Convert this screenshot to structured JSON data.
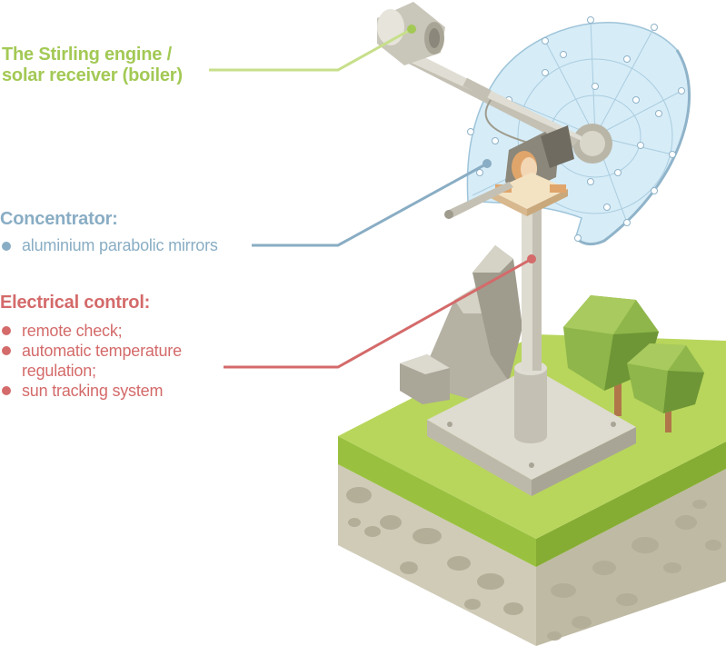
{
  "colors": {
    "stirling_green": "#a3c955",
    "concentrator_blue": "#89adc4",
    "electrical_red": "#d46a6a",
    "grass": "#b2d355",
    "soil": "#cfcbb7",
    "mirror": "#d6ecf7"
  },
  "stirling": {
    "line1": "The Stirling engine /",
    "line2": "solar receiver (boiler)"
  },
  "concentrator": {
    "title": "Concentrator:",
    "items": [
      "aluminium parabolic mirrors"
    ]
  },
  "electrical": {
    "title": "Electrical control:",
    "items": [
      "remote check;",
      "automatic temperature",
      "regulation;",
      "sun tracking system"
    ]
  }
}
